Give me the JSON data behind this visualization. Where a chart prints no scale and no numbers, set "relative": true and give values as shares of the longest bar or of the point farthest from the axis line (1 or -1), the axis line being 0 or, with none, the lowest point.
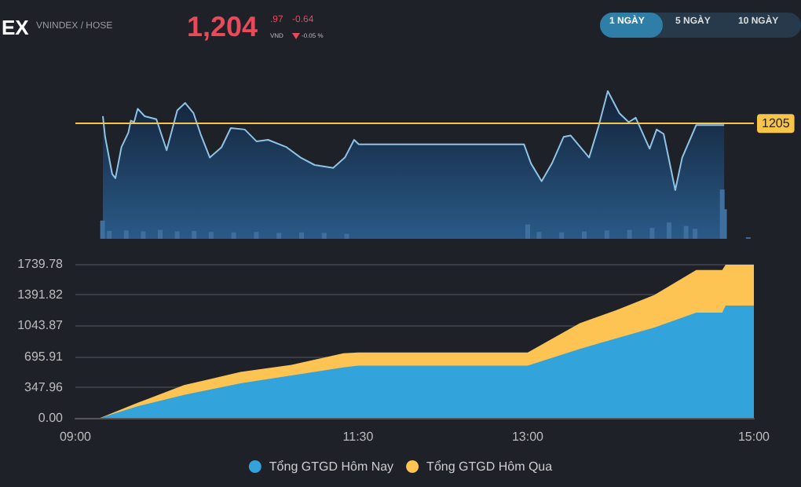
{
  "chart_data": [
    {
      "type": "area",
      "relative": true,
      "xlim": [
        9,
        15
      ],
      "tick_labels": false,
      "grid": false,
      "legend": false,
      "annotations": [
        "EX",
        "VNINDEX / HOSE",
        "1,204",
        ".97",
        "VND",
        "-0.64",
        "-0.05 %",
        "1 NGÀY",
        "5 NGÀY",
        "10 NGÀY",
        {
          "text": "1205",
          "y": 0.78
        }
      ],
      "ref_lines": [
        {
          "axis": "y",
          "value": 0.78,
          "color": "#f6c549"
        }
      ],
      "series": [
        {
          "color": "#8fc3e6",
          "x": [
            9.243,
            9.263,
            9.325,
            9.354,
            9.407,
            9.469,
            9.49,
            9.519,
            9.551,
            9.613,
            9.716,
            9.807,
            9.901,
            9.971,
            10.045,
            10.107,
            10.189,
            10.292,
            10.374,
            10.498,
            10.601,
            10.704,
            10.868,
            10.992,
            11.115,
            11.28,
            11.383,
            11.465,
            11.506,
            12.967,
            13.029,
            13.123,
            13.214,
            13.317,
            13.379,
            13.543,
            13.626,
            13.708,
            13.811,
            13.893,
            13.955,
            14.078,
            14.14,
            14.202,
            14.305,
            14.366,
            14.49,
            14.737
          ],
          "values": [
            0.83,
            0.69,
            0.44,
            0.41,
            0.62,
            0.72,
            0.8,
            0.79,
            0.88,
            0.83,
            0.81,
            0.6,
            0.87,
            0.92,
            0.85,
            0.71,
            0.55,
            0.62,
            0.75,
            0.74,
            0.66,
            0.67,
            0.62,
            0.55,
            0.5,
            0.48,
            0.55,
            0.67,
            0.64,
            0.64,
            0.51,
            0.39,
            0.51,
            0.69,
            0.7,
            0.55,
            0.76,
            1.0,
            0.85,
            0.79,
            0.82,
            0.61,
            0.74,
            0.71,
            0.33,
            0.55,
            0.77,
            0.77
          ]
        },
        {
          "type": "bar",
          "axis": "y2",
          "color": "#3f6f9f",
          "x": [
            9.24,
            9.3,
            9.45,
            9.6,
            9.75,
            9.9,
            10.05,
            10.2,
            10.4,
            10.6,
            10.8,
            11.0,
            11.2,
            11.4,
            13.0,
            13.1,
            13.3,
            13.5,
            13.7,
            13.9,
            14.1,
            14.25,
            14.4,
            14.48,
            14.72,
            14.74,
            14.95
          ],
          "values": [
            0.37,
            0.16,
            0.17,
            0.15,
            0.18,
            0.15,
            0.16,
            0.14,
            0.13,
            0.14,
            0.12,
            0.13,
            0.12,
            0.1,
            0.29,
            0.14,
            0.13,
            0.15,
            0.17,
            0.18,
            0.22,
            0.33,
            0.26,
            0.2,
            1.0,
            0.6,
            0.03
          ]
        }
      ]
    },
    {
      "type": "area",
      "xlim": [
        9,
        15
      ],
      "xticks": [
        {
          "value": 9,
          "label": "09:00"
        },
        {
          "value": 11.5,
          "label": "11:30"
        },
        {
          "value": 13,
          "label": "13:00"
        },
        {
          "value": 15,
          "label": "15:00"
        }
      ],
      "ylim": [
        0,
        1739.78
      ],
      "yticks": [
        {
          "value": 0,
          "label": "0.00"
        },
        347.96,
        695.91,
        1043.87,
        1391.82,
        1739.78
      ],
      "grid": "y",
      "legend": "bottom",
      "x": [
        9,
        9.22,
        9.55,
        9.96,
        10.46,
        10.91,
        11.37,
        11.5,
        13.0,
        13.46,
        13.79,
        14.12,
        14.49,
        14.72,
        14.75,
        15
      ],
      "series": [
        {
          "name": "Tổng GTGD Hôm Qua",
          "color": "#fdc453",
          "values": [
            0,
            0,
            170,
            370,
            520,
            600,
            730,
            740,
            740,
            1070,
            1220,
            1390,
            1670,
            1670,
            1730,
            1730
          ]
        },
        {
          "name": "Tổng GTGD Hôm Nay",
          "color": "#33a3dc",
          "values": [
            0,
            0,
            130,
            260,
            390,
            480,
            570,
            590,
            590,
            780,
            900,
            1020,
            1190,
            1190,
            1270,
            1270
          ]
        }
      ]
    }
  ]
}
